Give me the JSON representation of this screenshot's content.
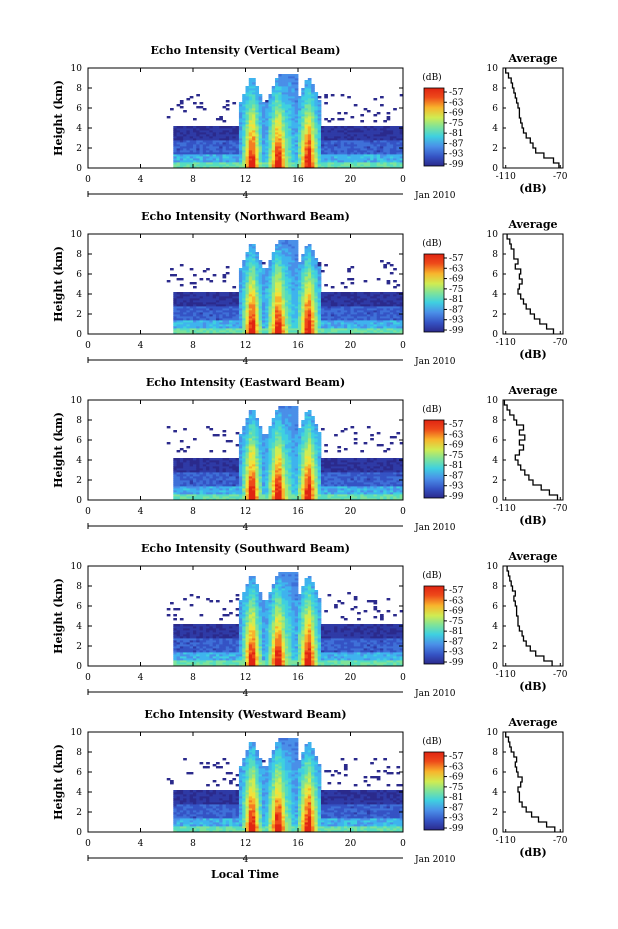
{
  "figure": {
    "xlabel": "Local Time",
    "date_label": "Jan 2010"
  },
  "colors": {
    "colormap": [
      "#2b2a8c",
      "#2f3ba6",
      "#3553c4",
      "#3f70d8",
      "#4a8fe8",
      "#3fb3ee",
      "#3fd0e0",
      "#55dcc0",
      "#7ee39a",
      "#a8e86e",
      "#d0ec52",
      "#f2e23a",
      "#f8b42c",
      "#f57d22",
      "#ee4a1a",
      "#e02412"
    ]
  },
  "chart_data": [
    {
      "type": "heatmap",
      "title": "Echo Intensity (Vertical Beam)",
      "ylabel": "Height (km)",
      "xticks": [
        "0",
        "4",
        "8",
        "12",
        "16",
        "20",
        "0"
      ],
      "yticks": [
        "0",
        "2",
        "4",
        "6",
        "8",
        "10"
      ],
      "xlim": [
        0,
        24
      ],
      "ylim": [
        0,
        10
      ],
      "date_tick": "4",
      "colorbar": {
        "label": "(dB)",
        "ticks": [
          "-57",
          "-63",
          "-69",
          "-75",
          "-81",
          "-87",
          "-93",
          "-99"
        ]
      },
      "average": {
        "title": "Average",
        "xlabel": "(dB)",
        "xticks": [
          "-110",
          "-70"
        ],
        "xlim": [
          -112,
          -68
        ],
        "yticks": [
          "0",
          "2",
          "4",
          "6",
          "8",
          "10"
        ],
        "heights": [
          0,
          0.5,
          1,
          1.5,
          2,
          2.5,
          3,
          3.5,
          4,
          4.5,
          5,
          5.5,
          6,
          6.5,
          7,
          7.5,
          8,
          8.5,
          9,
          9.5
        ],
        "values": [
          -71,
          -75,
          -82,
          -88,
          -90,
          -92,
          -95,
          -97,
          -98,
          -99,
          -100,
          -100,
          -101,
          -102,
          -103,
          -104,
          -105,
          -106,
          -108,
          -110
        ]
      }
    },
    {
      "type": "heatmap",
      "title": "Echo Intensity (Northward Beam)",
      "ylabel": "Height (km)",
      "xticks": [
        "0",
        "4",
        "8",
        "12",
        "16",
        "20",
        "0"
      ],
      "yticks": [
        "0",
        "2",
        "4",
        "6",
        "8",
        "10"
      ],
      "xlim": [
        0,
        24
      ],
      "ylim": [
        0,
        10
      ],
      "date_tick": "4",
      "colorbar": {
        "label": "(dB)",
        "ticks": [
          "-57",
          "-63",
          "-69",
          "-75",
          "-81",
          "-87",
          "-93",
          "-99"
        ]
      },
      "average": {
        "title": "Average",
        "xlabel": "(dB)",
        "xticks": [
          "-110",
          "-70"
        ],
        "xlim": [
          -112,
          -68
        ],
        "yticks": [
          "0",
          "2",
          "4",
          "6",
          "8",
          "10"
        ],
        "heights": [
          0,
          0.5,
          1,
          1.5,
          2,
          2.5,
          3,
          3.5,
          4,
          4.5,
          5,
          5.5,
          6,
          6.5,
          7,
          7.5,
          8,
          8.5,
          9,
          9.5
        ],
        "values": [
          -75,
          -80,
          -85,
          -89,
          -92,
          -95,
          -97,
          -99,
          -101,
          -100,
          -98,
          -100,
          -99,
          -103,
          -101,
          -104,
          -104,
          -106,
          -107,
          -109
        ]
      }
    },
    {
      "type": "heatmap",
      "title": "Echo Intensity (Eastward Beam)",
      "ylabel": "Height (km)",
      "xticks": [
        "0",
        "4",
        "8",
        "12",
        "16",
        "20",
        "0"
      ],
      "yticks": [
        "0",
        "2",
        "4",
        "6",
        "8",
        "10"
      ],
      "xlim": [
        0,
        24
      ],
      "ylim": [
        0,
        10
      ],
      "date_tick": "4",
      "colorbar": {
        "label": "(dB)",
        "ticks": [
          "-57",
          "-63",
          "-69",
          "-75",
          "-81",
          "-87",
          "-93",
          "-99"
        ]
      },
      "average": {
        "title": "Average",
        "xlabel": "(dB)",
        "xticks": [
          "-110",
          "-70"
        ],
        "xlim": [
          -112,
          -68
        ],
        "yticks": [
          "0",
          "2",
          "4",
          "6",
          "8",
          "10"
        ],
        "heights": [
          0,
          0.5,
          1,
          1.5,
          2,
          2.5,
          3,
          3.5,
          4,
          4.5,
          5,
          5.5,
          6,
          6.5,
          7,
          7.5,
          8,
          8.5,
          9,
          9.5
        ],
        "values": [
          -72,
          -78,
          -84,
          -90,
          -93,
          -96,
          -99,
          -101,
          -103,
          -100,
          -97,
          -100,
          -96,
          -100,
          -97,
          -102,
          -104,
          -107,
          -109,
          -111
        ]
      }
    },
    {
      "type": "heatmap",
      "title": "Echo Intensity (Southward Beam)",
      "ylabel": "Height (km)",
      "xticks": [
        "0",
        "4",
        "8",
        "12",
        "16",
        "20",
        "0"
      ],
      "yticks": [
        "0",
        "2",
        "4",
        "6",
        "8",
        "10"
      ],
      "xlim": [
        0,
        24
      ],
      "ylim": [
        0,
        10
      ],
      "date_tick": "4",
      "colorbar": {
        "label": "(dB)",
        "ticks": [
          "-57",
          "-63",
          "-69",
          "-75",
          "-81",
          "-87",
          "-93",
          "-99"
        ]
      },
      "average": {
        "title": "Average",
        "xlabel": "(dB)",
        "xticks": [
          "-110",
          "-70"
        ],
        "xlim": [
          -112,
          -68
        ],
        "yticks": [
          "0",
          "2",
          "4",
          "6",
          "8",
          "10"
        ],
        "heights": [
          0,
          0.5,
          1,
          1.5,
          2,
          2.5,
          3,
          3.5,
          4,
          4.5,
          5,
          5.5,
          6,
          6.5,
          7,
          7.5,
          8,
          8.5,
          9,
          9.5
        ],
        "values": [
          -76,
          -82,
          -88,
          -92,
          -95,
          -97,
          -98,
          -100,
          -101,
          -101,
          -102,
          -102,
          -103,
          -104,
          -103,
          -105,
          -106,
          -107,
          -108,
          -109
        ]
      }
    },
    {
      "type": "heatmap",
      "title": "Echo Intensity (Westward Beam)",
      "ylabel": "Height (km)",
      "xticks": [
        "0",
        "4",
        "8",
        "12",
        "16",
        "20",
        "0"
      ],
      "yticks": [
        "0",
        "2",
        "4",
        "6",
        "8",
        "10"
      ],
      "xlim": [
        0,
        24
      ],
      "ylim": [
        0,
        10
      ],
      "date_tick": "4",
      "colorbar": {
        "label": "(dB)",
        "ticks": [
          "-57",
          "-63",
          "-69",
          "-75",
          "-81",
          "-87",
          "-93",
          "-99"
        ]
      },
      "average": {
        "title": "Average",
        "xlabel": "(dB)",
        "xticks": [
          "-110",
          "-70"
        ],
        "xlim": [
          -112,
          -68
        ],
        "yticks": [
          "0",
          "2",
          "4",
          "6",
          "8",
          "10"
        ],
        "heights": [
          0,
          0.5,
          1,
          1.5,
          2,
          2.5,
          3,
          3.5,
          4,
          4.5,
          5,
          5.5,
          6,
          6.5,
          7,
          7.5,
          8,
          8.5,
          9,
          9.5
        ],
        "values": [
          -74,
          -80,
          -86,
          -91,
          -95,
          -98,
          -100,
          -100,
          -101,
          -99,
          -98,
          -101,
          -102,
          -103,
          -102,
          -104,
          -106,
          -107,
          -108,
          -110
        ]
      }
    }
  ]
}
